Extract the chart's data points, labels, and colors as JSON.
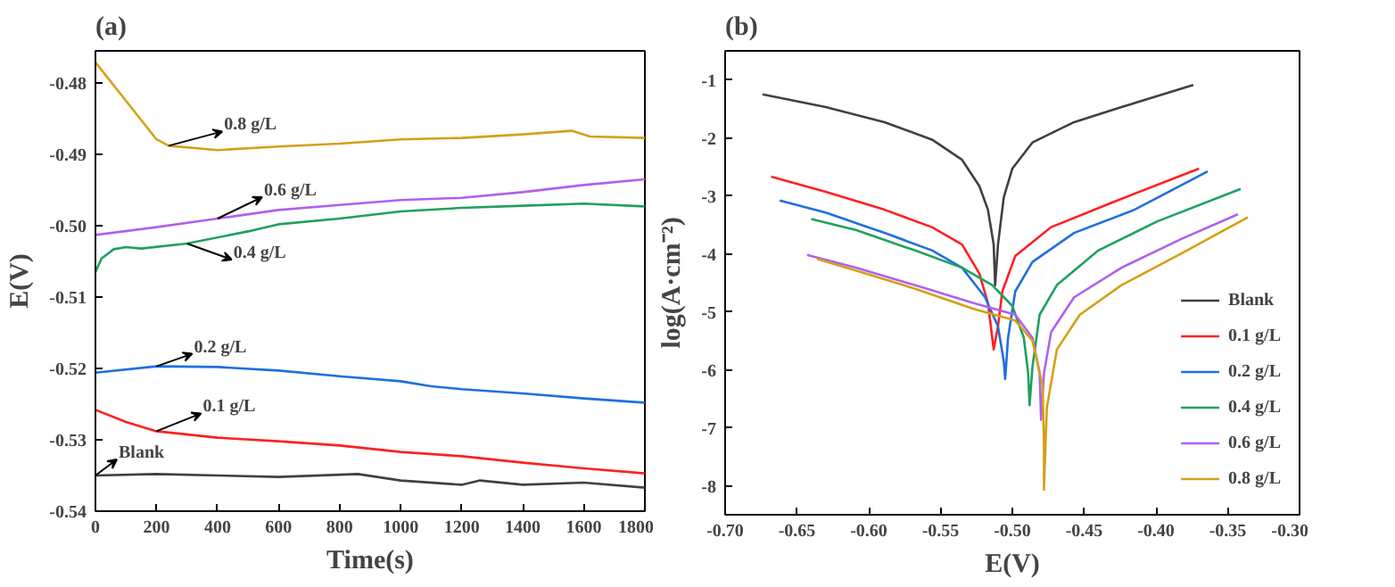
{
  "chart_data": [
    {
      "type": "line",
      "title": "(a)",
      "xlabel": "Time(s)",
      "ylabel": "E(V)",
      "xlim": [
        0,
        1800
      ],
      "ylim": [
        -0.54,
        -0.4755
      ],
      "xticks": [
        0,
        200,
        400,
        600,
        800,
        1000,
        1200,
        1400,
        1600,
        1800
      ],
      "yticks": [
        -0.54,
        -0.53,
        -0.52,
        -0.51,
        {
          "value": -0.5,
          "label": "-0.50"
        },
        -0.49,
        -0.48
      ],
      "legend": false,
      "x": [
        0,
        100,
        200,
        240,
        400,
        600,
        800,
        1000,
        1200,
        1400,
        1560,
        1620,
        1800
      ],
      "series": [
        {
          "name": "0.8 g/L",
          "color": "#d4a017",
          "values": [
            -0.4771,
            -0.4825,
            -0.4879,
            -0.4888,
            -0.4894,
            -0.4889,
            -0.4885,
            -0.4879,
            -0.4877,
            -0.4872,
            -0.4867,
            -0.4875,
            -0.4877
          ]
        },
        {
          "name": "0.6 g/L",
          "color": "#b060f0",
          "x": [
            0,
            200,
            400,
            600,
            800,
            1000,
            1200,
            1400,
            1600,
            1800
          ],
          "values": [
            -0.5013,
            -0.5002,
            -0.499,
            -0.4978,
            -0.4971,
            -0.4964,
            -0.4961,
            -0.4953,
            -0.4943,
            -0.4935
          ]
        },
        {
          "name": "0.4 g/L",
          "color": "#20a060",
          "x": [
            0,
            20,
            60,
            100,
            150,
            300,
            500,
            600,
            800,
            1000,
            1200,
            1400,
            1600,
            1800
          ],
          "values": [
            -0.5065,
            -0.5046,
            -0.5033,
            -0.503,
            -0.5032,
            -0.5025,
            -0.5008,
            -0.4998,
            -0.499,
            -0.498,
            -0.4975,
            -0.4972,
            -0.4969,
            -0.4973
          ]
        },
        {
          "name": "0.2 g/L",
          "color": "#1f6fe0",
          "x": [
            0,
            200,
            400,
            600,
            800,
            1000,
            1100,
            1200,
            1400,
            1600,
            1800
          ],
          "values": [
            -0.5206,
            -0.5197,
            -0.5198,
            -0.5203,
            -0.5211,
            -0.5218,
            -0.5225,
            -0.5229,
            -0.5235,
            -0.5242,
            -0.5248
          ]
        },
        {
          "name": "0.1 g/L",
          "color": "#ff2020",
          "x": [
            0,
            100,
            200,
            400,
            600,
            800,
            1000,
            1200,
            1400,
            1600,
            1800
          ],
          "values": [
            -0.5258,
            -0.5275,
            -0.5288,
            -0.5297,
            -0.5302,
            -0.5308,
            -0.5317,
            -0.5323,
            -0.5332,
            -0.534,
            -0.5347
          ]
        },
        {
          "name": "Blank",
          "color": "#404040",
          "x": [
            0,
            200,
            400,
            600,
            860,
            1000,
            1200,
            1260,
            1400,
            1600,
            1800
          ],
          "values": [
            -0.535,
            -0.5348,
            -0.535,
            -0.5352,
            -0.5348,
            -0.5357,
            -0.5363,
            -0.5357,
            -0.5363,
            -0.536,
            -0.5367
          ]
        }
      ]
    },
    {
      "type": "line",
      "title": "(b)",
      "xlabel": "E(V)",
      "ylabel": "log(A·cm⁻²)",
      "xlim": [
        -0.7,
        -0.3
      ],
      "ylim": [
        -8.5,
        -0.5
      ],
      "xticks": [
        {
          "value": -0.7,
          "label": "-0.70"
        },
        {
          "value": -0.65,
          "label": "-0.65"
        },
        {
          "value": -0.6,
          "label": "-0.60"
        },
        {
          "value": -0.55,
          "label": "-0.55"
        },
        {
          "value": -0.5,
          "label": "-0.50"
        },
        {
          "value": -0.45,
          "label": "-0.45"
        },
        {
          "value": -0.4,
          "label": "-0.40"
        },
        {
          "value": -0.35,
          "label": "-0.35"
        },
        {
          "value": -0.3,
          "label": "-0.30"
        }
      ],
      "yticks": [
        -8,
        -7,
        -6,
        -5,
        -4,
        -3,
        -2,
        -1
      ],
      "legend": "bottom right",
      "series": [
        {
          "name": "Blank",
          "color": "#404040",
          "x": [
            -0.674,
            -0.63,
            -0.589,
            -0.556,
            -0.535,
            -0.523,
            -0.517,
            -0.513,
            -0.512,
            -0.51,
            -0.506,
            -0.5,
            -0.486,
            -0.457,
            -0.424,
            -0.374
          ],
          "values": [
            -1.25,
            -1.47,
            -1.73,
            -2.03,
            -2.38,
            -2.83,
            -3.24,
            -3.84,
            -4.54,
            -3.84,
            -3.03,
            -2.53,
            -2.08,
            -1.73,
            -1.47,
            -1.09
          ]
        },
        {
          "name": "0.1 g/L",
          "color": "#ff2020",
          "x": [
            -0.668,
            -0.63,
            -0.589,
            -0.556,
            -0.535,
            -0.523,
            -0.517,
            -0.514,
            -0.513,
            -0.51,
            -0.507,
            -0.498,
            -0.473,
            -0.432,
            -0.37
          ],
          "values": [
            -2.67,
            -2.93,
            -3.24,
            -3.54,
            -3.84,
            -4.34,
            -4.85,
            -5.45,
            -5.65,
            -5.25,
            -4.65,
            -4.04,
            -3.54,
            -3.13,
            -2.53
          ]
        },
        {
          "name": "0.2 g/L",
          "color": "#1f6fe0",
          "x": [
            -0.662,
            -0.63,
            -0.589,
            -0.556,
            -0.535,
            -0.519,
            -0.51,
            -0.506,
            -0.505,
            -0.503,
            -0.498,
            -0.486,
            -0.457,
            -0.415,
            -0.364
          ],
          "values": [
            -3.08,
            -3.29,
            -3.64,
            -3.94,
            -4.24,
            -4.75,
            -5.25,
            -5.85,
            -6.16,
            -5.45,
            -4.65,
            -4.14,
            -3.64,
            -3.24,
            -2.58
          ]
        },
        {
          "name": "0.4 g/L",
          "color": "#20a060",
          "x": [
            -0.64,
            -0.609,
            -0.568,
            -0.535,
            -0.514,
            -0.5,
            -0.492,
            -0.489,
            -0.488,
            -0.486,
            -0.481,
            -0.469,
            -0.44,
            -0.399,
            -0.341
          ],
          "values": [
            -3.4,
            -3.59,
            -3.94,
            -4.24,
            -4.54,
            -4.9,
            -5.45,
            -6.06,
            -6.61,
            -5.95,
            -5.05,
            -4.54,
            -3.94,
            -3.44,
            -2.88
          ]
        },
        {
          "name": "0.6 g/L",
          "color": "#b060f0",
          "x": [
            -0.643,
            -0.609,
            -0.568,
            -0.527,
            -0.498,
            -0.486,
            -0.481,
            -0.48,
            -0.478,
            -0.473,
            -0.457,
            -0.424,
            -0.382,
            -0.343
          ],
          "values": [
            -4.02,
            -4.24,
            -4.54,
            -4.85,
            -5.05,
            -5.45,
            -6.06,
            -6.86,
            -6.06,
            -5.35,
            -4.75,
            -4.24,
            -3.74,
            -3.32
          ]
        },
        {
          "name": "0.8 g/L",
          "color": "#d4a017",
          "x": [
            -0.636,
            -0.609,
            -0.568,
            -0.527,
            -0.498,
            -0.486,
            -0.479,
            -0.478,
            -0.478,
            -0.476,
            -0.469,
            -0.453,
            -0.424,
            -0.382,
            -0.336
          ],
          "values": [
            -4.09,
            -4.29,
            -4.6,
            -4.95,
            -5.15,
            -5.5,
            -6.26,
            -7.26,
            -8.07,
            -6.66,
            -5.65,
            -5.05,
            -4.54,
            -3.99,
            -3.37
          ]
        }
      ]
    }
  ]
}
